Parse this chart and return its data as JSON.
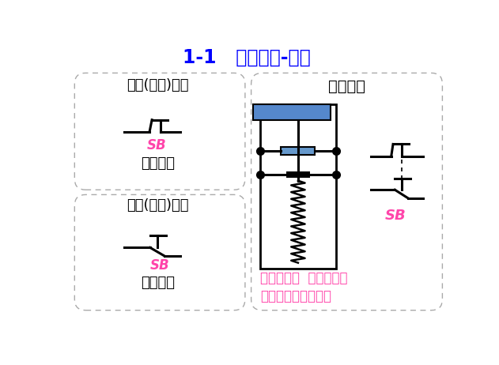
{
  "title": "1-1   控制器件-按钮",
  "title_color": "#0000FF",
  "title_fontsize": 17,
  "bg_color": "#FFFFFF",
  "box_edge_color": "#999999",
  "label_top_left_1": "常开(动合)按钮",
  "label_top_left_2": "电路符号",
  "label_bot_left_1": "常闭(动断)按钮",
  "label_bot_left_2": "电路符号",
  "label_right_title": "复合按钮",
  "label_SB_color": "#FF44AA",
  "label_SB": "SB",
  "label_right_desc1": "复合按钮：  常开按钮和",
  "label_right_desc2": "常闭按钮做在一起。",
  "desc_color": "#FF44AA",
  "black": "#000000",
  "blue_rect": "#5588CC",
  "blue_contact": "#6699CC"
}
